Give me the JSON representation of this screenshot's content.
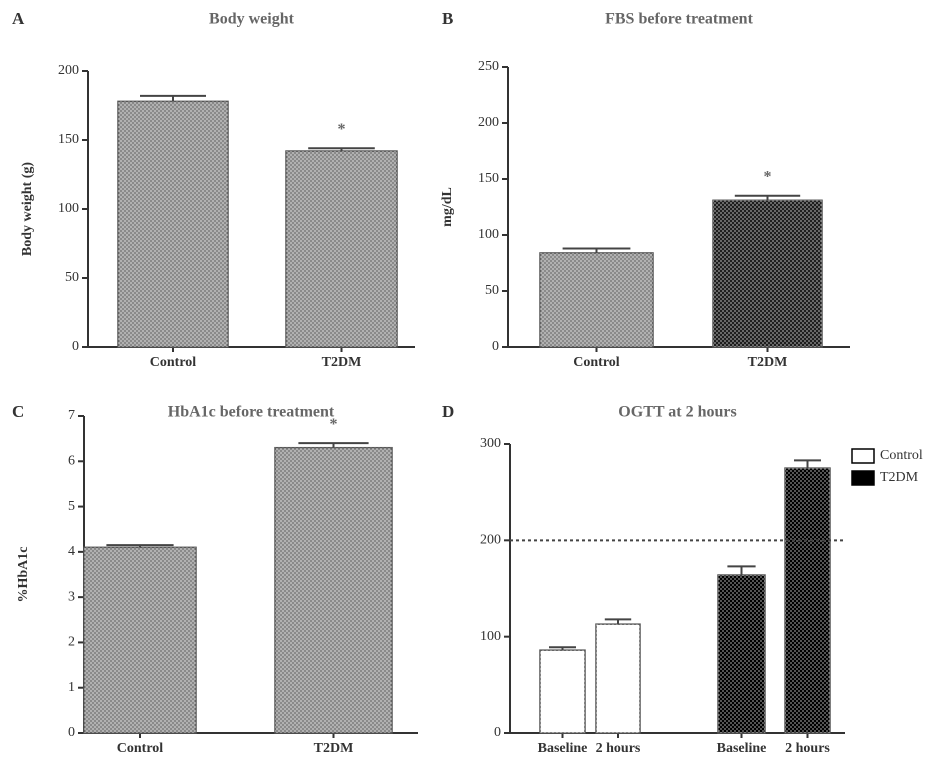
{
  "chart_data": [
    {
      "type": "bar",
      "label": "A",
      "title": "Body weight",
      "ylabel": "Body weight (g)",
      "categories": [
        "Control",
        "T2DM"
      ],
      "values": [
        178,
        142
      ],
      "errors": [
        4,
        2
      ],
      "colors": [
        "#8a8a8a",
        "#8a8a8a"
      ],
      "annotation": "*",
      "ylim": [
        0,
        200
      ],
      "yticks": [
        0,
        50,
        100,
        150,
        200
      ]
    },
    {
      "type": "bar",
      "label": "B",
      "title": "FBS before treatment",
      "ylabel": "mg/dL",
      "categories": [
        "Control",
        "T2DM"
      ],
      "values": [
        84,
        131
      ],
      "errors": [
        4,
        4
      ],
      "colors": [
        "#8a8a8a",
        "#1e1e1e"
      ],
      "annotation": "*",
      "ylim": [
        0,
        250
      ],
      "yticks": [
        0,
        50,
        100,
        150,
        200,
        250
      ]
    },
    {
      "type": "bar",
      "label": "C",
      "title": "HbA1c before treatment",
      "ylabel": "%HbA1c",
      "categories": [
        "Control",
        "T2DM"
      ],
      "values": [
        4.1,
        6.3
      ],
      "errors": [
        0.05,
        0.1
      ],
      "colors": [
        "#8a8a8a",
        "#8a8a8a"
      ],
      "annotation": "*",
      "ylim": [
        0,
        7
      ],
      "yticks": [
        0,
        1,
        2,
        3,
        4,
        5,
        6,
        7
      ]
    },
    {
      "type": "bar",
      "label": "D",
      "title": "OGTT at 2 hours",
      "categories": [
        "Baseline",
        "2 hours",
        "Baseline",
        "2 hours"
      ],
      "series": [
        {
          "name": "Control",
          "color": "#ffffff",
          "values": [
            86,
            113,
            null,
            null
          ],
          "errors": [
            3,
            5,
            null,
            null
          ]
        },
        {
          "name": "T2DM",
          "color": "#000000",
          "values": [
            null,
            null,
            164,
            275
          ],
          "errors": [
            null,
            null,
            9,
            8
          ]
        }
      ],
      "hline": 200,
      "legend": "upper right",
      "ylim": [
        0,
        300
      ],
      "yticks": [
        0,
        100,
        200,
        300
      ]
    }
  ]
}
